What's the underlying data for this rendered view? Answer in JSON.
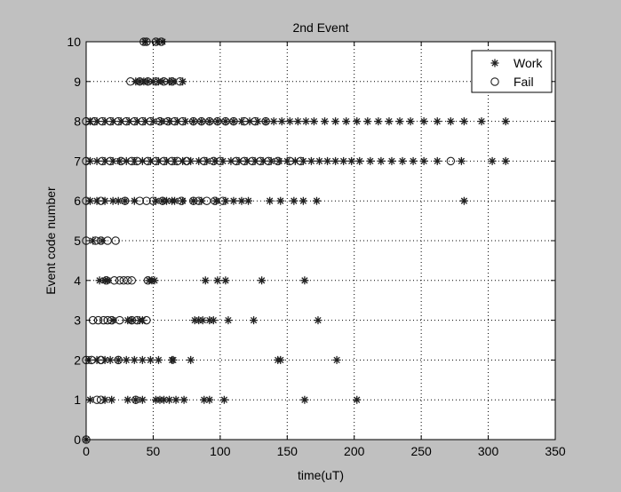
{
  "chart_data": {
    "type": "scatter",
    "title": "2nd Event",
    "xlabel": "time(uT)",
    "ylabel": "Event code number",
    "xlim": [
      0,
      350
    ],
    "ylim": [
      0,
      10
    ],
    "xticks": [
      "0",
      "50",
      "100",
      "150",
      "200",
      "250",
      "300",
      "350"
    ],
    "yticks": [
      "0",
      "1",
      "2",
      "3",
      "4",
      "5",
      "6",
      "7",
      "8",
      "9",
      "10"
    ],
    "grid": true,
    "legend_position": "top-right",
    "series": [
      {
        "name": "Work",
        "marker": "star",
        "points": [
          [
            0,
            0
          ],
          [
            3,
            1
          ],
          [
            14,
            1
          ],
          [
            19,
            1
          ],
          [
            31,
            1
          ],
          [
            37,
            1
          ],
          [
            42,
            1
          ],
          [
            52,
            1
          ],
          [
            55,
            1
          ],
          [
            58,
            1
          ],
          [
            62,
            1
          ],
          [
            67,
            1
          ],
          [
            73,
            1
          ],
          [
            88,
            1
          ],
          [
            92,
            1
          ],
          [
            103,
            1
          ],
          [
            163,
            1
          ],
          [
            202,
            1
          ],
          [
            2,
            2
          ],
          [
            8,
            2
          ],
          [
            14,
            2
          ],
          [
            18,
            2
          ],
          [
            24,
            2
          ],
          [
            30,
            2
          ],
          [
            36,
            2
          ],
          [
            42,
            2
          ],
          [
            48,
            2
          ],
          [
            54,
            2
          ],
          [
            64,
            2
          ],
          [
            65,
            2
          ],
          [
            78,
            2
          ],
          [
            143,
            2
          ],
          [
            145,
            2
          ],
          [
            187,
            2
          ],
          [
            20,
            3
          ],
          [
            31,
            3
          ],
          [
            34,
            3
          ],
          [
            40,
            3
          ],
          [
            42,
            3
          ],
          [
            81,
            3
          ],
          [
            84,
            3
          ],
          [
            87,
            3
          ],
          [
            92,
            3
          ],
          [
            95,
            3
          ],
          [
            106,
            3
          ],
          [
            125,
            3
          ],
          [
            173,
            3
          ],
          [
            10,
            4
          ],
          [
            14,
            4
          ],
          [
            16,
            4
          ],
          [
            47,
            4
          ],
          [
            49,
            4
          ],
          [
            51,
            4
          ],
          [
            89,
            4
          ],
          [
            98,
            4
          ],
          [
            104,
            4
          ],
          [
            131,
            4
          ],
          [
            163,
            4
          ],
          [
            5,
            5
          ],
          [
            12,
            5
          ],
          [
            3,
            6
          ],
          [
            8,
            6
          ],
          [
            14,
            6
          ],
          [
            20,
            6
          ],
          [
            24,
            6
          ],
          [
            29,
            6
          ],
          [
            36,
            6
          ],
          [
            52,
            6
          ],
          [
            57,
            6
          ],
          [
            60,
            6
          ],
          [
            64,
            6
          ],
          [
            66,
            6
          ],
          [
            72,
            6
          ],
          [
            80,
            6
          ],
          [
            86,
            6
          ],
          [
            97,
            6
          ],
          [
            104,
            6
          ],
          [
            110,
            6
          ],
          [
            116,
            6
          ],
          [
            121,
            6
          ],
          [
            137,
            6
          ],
          [
            145,
            6
          ],
          [
            155,
            6
          ],
          [
            162,
            6
          ],
          [
            172,
            6
          ],
          [
            282,
            6
          ],
          [
            3,
            7
          ],
          [
            8,
            7
          ],
          [
            14,
            7
          ],
          [
            20,
            7
          ],
          [
            25,
            7
          ],
          [
            30,
            7
          ],
          [
            36,
            7
          ],
          [
            42,
            7
          ],
          [
            48,
            7
          ],
          [
            54,
            7
          ],
          [
            60,
            7
          ],
          [
            66,
            7
          ],
          [
            72,
            7
          ],
          [
            78,
            7
          ],
          [
            84,
            7
          ],
          [
            90,
            7
          ],
          [
            96,
            7
          ],
          [
            102,
            7
          ],
          [
            108,
            7
          ],
          [
            114,
            7
          ],
          [
            120,
            7
          ],
          [
            126,
            7
          ],
          [
            132,
            7
          ],
          [
            138,
            7
          ],
          [
            144,
            7
          ],
          [
            150,
            7
          ],
          [
            156,
            7
          ],
          [
            162,
            7
          ],
          [
            168,
            7
          ],
          [
            174,
            7
          ],
          [
            180,
            7
          ],
          [
            186,
            7
          ],
          [
            192,
            7
          ],
          [
            198,
            7
          ],
          [
            204,
            7
          ],
          [
            212,
            7
          ],
          [
            220,
            7
          ],
          [
            228,
            7
          ],
          [
            236,
            7
          ],
          [
            244,
            7
          ],
          [
            252,
            7
          ],
          [
            262,
            7
          ],
          [
            280,
            7
          ],
          [
            303,
            7
          ],
          [
            313,
            7
          ],
          [
            3,
            8
          ],
          [
            8,
            8
          ],
          [
            14,
            8
          ],
          [
            20,
            8
          ],
          [
            26,
            8
          ],
          [
            32,
            8
          ],
          [
            38,
            8
          ],
          [
            44,
            8
          ],
          [
            50,
            8
          ],
          [
            56,
            8
          ],
          [
            62,
            8
          ],
          [
            68,
            8
          ],
          [
            74,
            8
          ],
          [
            80,
            8
          ],
          [
            86,
            8
          ],
          [
            92,
            8
          ],
          [
            98,
            8
          ],
          [
            104,
            8
          ],
          [
            110,
            8
          ],
          [
            116,
            8
          ],
          [
            122,
            8
          ],
          [
            128,
            8
          ],
          [
            134,
            8
          ],
          [
            140,
            8
          ],
          [
            146,
            8
          ],
          [
            152,
            8
          ],
          [
            158,
            8
          ],
          [
            164,
            8
          ],
          [
            170,
            8
          ],
          [
            178,
            8
          ],
          [
            186,
            8
          ],
          [
            194,
            8
          ],
          [
            202,
            8
          ],
          [
            210,
            8
          ],
          [
            218,
            8
          ],
          [
            226,
            8
          ],
          [
            234,
            8
          ],
          [
            242,
            8
          ],
          [
            252,
            8
          ],
          [
            262,
            8
          ],
          [
            272,
            8
          ],
          [
            282,
            8
          ],
          [
            295,
            8
          ],
          [
            313,
            8
          ],
          [
            37,
            9
          ],
          [
            40,
            9
          ],
          [
            43,
            9
          ],
          [
            46,
            9
          ],
          [
            50,
            9
          ],
          [
            54,
            9
          ],
          [
            57,
            9
          ],
          [
            62,
            9
          ],
          [
            65,
            9
          ],
          [
            72,
            9
          ],
          [
            44,
            10
          ],
          [
            53,
            10
          ],
          [
            57,
            10
          ]
        ]
      },
      {
        "name": "Fail",
        "marker": "circle",
        "points": [
          [
            0,
            0
          ],
          [
            8,
            1
          ],
          [
            11,
            1
          ],
          [
            37,
            1
          ],
          [
            0,
            2
          ],
          [
            4,
            2
          ],
          [
            11,
            2
          ],
          [
            24,
            2
          ],
          [
            5,
            3
          ],
          [
            9,
            3
          ],
          [
            13,
            3
          ],
          [
            16,
            3
          ],
          [
            19,
            3
          ],
          [
            25,
            3
          ],
          [
            34,
            3
          ],
          [
            38,
            3
          ],
          [
            45,
            3
          ],
          [
            15,
            4
          ],
          [
            21,
            4
          ],
          [
            25,
            4
          ],
          [
            28,
            4
          ],
          [
            31,
            4
          ],
          [
            34,
            4
          ],
          [
            46,
            4
          ],
          [
            0,
            5
          ],
          [
            7,
            5
          ],
          [
            11,
            5
          ],
          [
            16,
            5
          ],
          [
            22,
            5
          ],
          [
            0,
            6
          ],
          [
            11,
            6
          ],
          [
            29,
            6
          ],
          [
            40,
            6
          ],
          [
            45,
            6
          ],
          [
            50,
            6
          ],
          [
            57,
            6
          ],
          [
            71,
            6
          ],
          [
            80,
            6
          ],
          [
            84,
            6
          ],
          [
            90,
            6
          ],
          [
            96,
            6
          ],
          [
            102,
            6
          ],
          [
            0,
            7
          ],
          [
            12,
            7
          ],
          [
            18,
            7
          ],
          [
            26,
            7
          ],
          [
            34,
            7
          ],
          [
            38,
            7
          ],
          [
            46,
            7
          ],
          [
            52,
            7
          ],
          [
            58,
            7
          ],
          [
            64,
            7
          ],
          [
            68,
            7
          ],
          [
            75,
            7
          ],
          [
            88,
            7
          ],
          [
            95,
            7
          ],
          [
            100,
            7
          ],
          [
            112,
            7
          ],
          [
            118,
            7
          ],
          [
            124,
            7
          ],
          [
            130,
            7
          ],
          [
            136,
            7
          ],
          [
            143,
            7
          ],
          [
            152,
            7
          ],
          [
            160,
            7
          ],
          [
            272,
            7
          ],
          [
            0,
            8
          ],
          [
            6,
            8
          ],
          [
            12,
            8
          ],
          [
            18,
            8
          ],
          [
            24,
            8
          ],
          [
            30,
            8
          ],
          [
            36,
            8
          ],
          [
            42,
            8
          ],
          [
            48,
            8
          ],
          [
            55,
            8
          ],
          [
            61,
            8
          ],
          [
            66,
            8
          ],
          [
            72,
            8
          ],
          [
            80,
            8
          ],
          [
            86,
            8
          ],
          [
            92,
            8
          ],
          [
            98,
            8
          ],
          [
            104,
            8
          ],
          [
            110,
            8
          ],
          [
            118,
            8
          ],
          [
            126,
            8
          ],
          [
            134,
            8
          ],
          [
            33,
            9
          ],
          [
            40,
            9
          ],
          [
            46,
            9
          ],
          [
            52,
            9
          ],
          [
            58,
            9
          ],
          [
            64,
            9
          ],
          [
            70,
            9
          ],
          [
            43,
            10
          ],
          [
            45,
            10
          ],
          [
            52,
            10
          ],
          [
            56,
            10
          ]
        ]
      }
    ]
  },
  "colors": {
    "figure_background": "#c0c0c0",
    "plot_background": "#ffffff",
    "axes": "#000000",
    "grid": "#000000",
    "marker": "#202020"
  }
}
